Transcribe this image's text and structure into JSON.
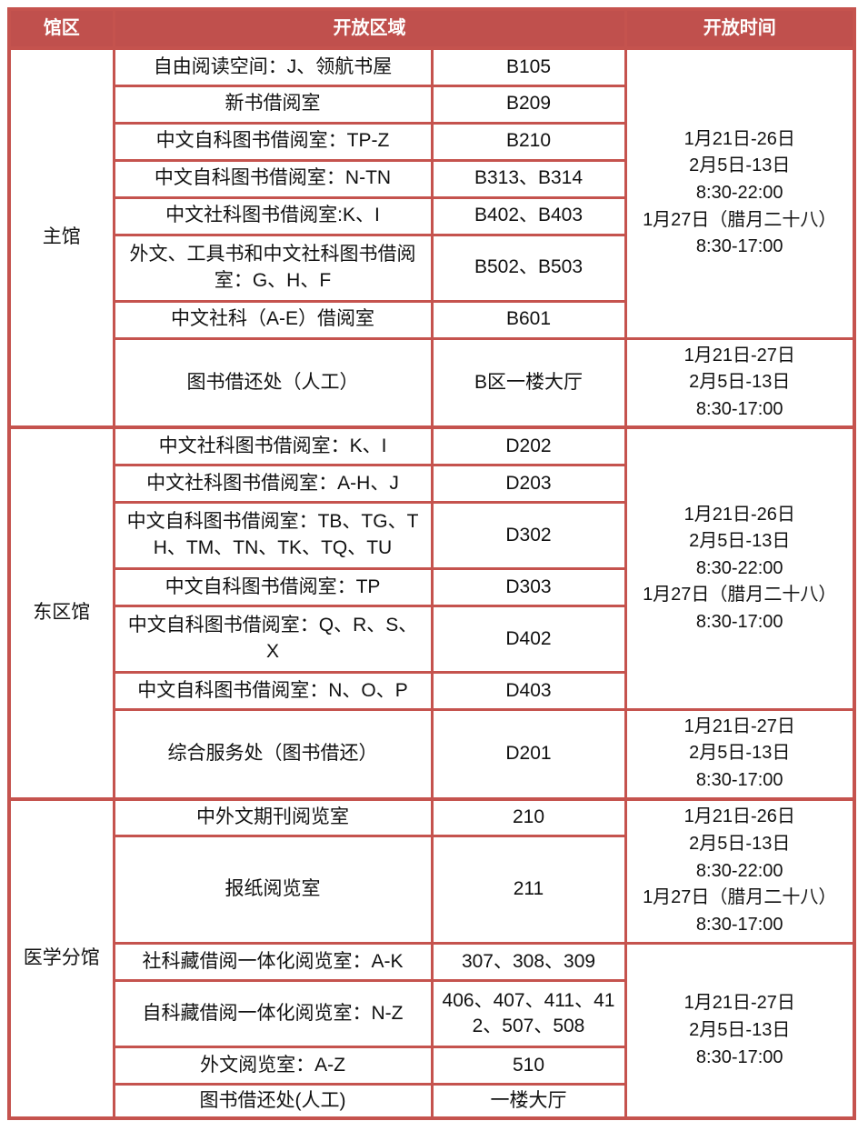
{
  "colors": {
    "header_bg": "#C0504D",
    "header_text": "#FFFFFF",
    "border": "#C5534E",
    "body_text": "#111111",
    "cell_bg": "#FFFFFF"
  },
  "header": {
    "hall": "馆区",
    "area": "开放区域",
    "time": "开放时间"
  },
  "sections": [
    {
      "hall": "主馆",
      "rows": [
        {
          "area": "自由阅读空间：J、领航书屋",
          "room": "B105"
        },
        {
          "area": "新书借阅室",
          "room": "B209"
        },
        {
          "area": "中文自科图书借阅室：TP-Z",
          "room": "B210"
        },
        {
          "area": "中文自科图书借阅室：N-TN",
          "room": "B313、B314"
        },
        {
          "area": "中文社科图书借阅室:K、I",
          "room": "B402、B403"
        },
        {
          "area": "外文、工具书和中文社科图书借阅室：G、H、F",
          "room": "B502、B503"
        },
        {
          "area": "中文社科（A-E）借阅室",
          "room": "B601"
        },
        {
          "area": "图书借还处（人工）",
          "room": "B区一楼大厅"
        }
      ],
      "times": [
        {
          "text": "1月21日-26日\n2月5日-13日\n8:30-22:00\n1月27日（腊月二十八）\n8:30-17:00"
        },
        {
          "text": "1月21日-27日\n2月5日-13日\n8:30-17:00"
        }
      ]
    },
    {
      "hall": "东区馆",
      "rows": [
        {
          "area": "中文社科图书借阅室：K、I",
          "room": "D202"
        },
        {
          "area": "中文社科图书借阅室：A-H、J",
          "room": "D203"
        },
        {
          "area": "中文自科图书借阅室：TB、TG、TH、TM、TN、TK、TQ、TU",
          "room": "D302"
        },
        {
          "area": "中文自科图书借阅室：TP",
          "room": "D303"
        },
        {
          "area": "中文自科图书借阅室：Q、R、S、X",
          "room": "D402"
        },
        {
          "area": "中文自科图书借阅室：N、O、P",
          "room": "D403"
        },
        {
          "area": "综合服务处（图书借还）",
          "room": "D201"
        }
      ],
      "times": [
        {
          "text": "1月21日-26日\n2月5日-13日\n8:30-22:00\n1月27日（腊月二十八）\n8:30-17:00"
        },
        {
          "text": "1月21日-27日\n2月5日-13日\n8:30-17:00"
        }
      ]
    },
    {
      "hall": "医学分馆",
      "rows": [
        {
          "area": "中外文期刊阅览室",
          "room": "210"
        },
        {
          "area": "报纸阅览室",
          "room": "211"
        },
        {
          "area": "社科藏借阅一体化阅览室：A-K",
          "room": "307、308、309"
        },
        {
          "area": "自科藏借阅一体化阅览室：N-Z",
          "room": "406、407、411、412、507、508"
        },
        {
          "area": "外文阅览室：A-Z",
          "room": "510"
        },
        {
          "area": "图书借还处(人工)",
          "room": "一楼大厅"
        }
      ],
      "times": [
        {
          "text": "1月21日-26日\n2月5日-13日\n8:30-22:00\n1月27日（腊月二十八）\n8:30-17:00"
        },
        {
          "text": "1月21日-27日\n2月5日-13日\n8:30-17:00"
        }
      ]
    }
  ]
}
